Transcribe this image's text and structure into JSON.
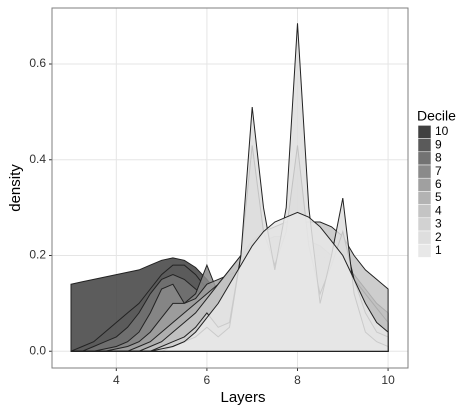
{
  "chart_data": {
    "type": "density",
    "x_label": "Layers",
    "y_label": "density",
    "legend_title": "Decile",
    "x": [
      3,
      3.25,
      3.5,
      3.75,
      4,
      4.25,
      4.5,
      4.75,
      5,
      5.25,
      5.5,
      5.75,
      6,
      6.25,
      6.5,
      6.75,
      7,
      7.25,
      7.5,
      7.75,
      8,
      8.25,
      8.5,
      8.75,
      9,
      9.25,
      9.5,
      9.75,
      10
    ],
    "xlim": [
      2.58,
      10.44
    ],
    "xticks": [
      4,
      6,
      8,
      10
    ],
    "ylim": [
      -0.035,
      0.717
    ],
    "yticks": [
      {
        "value": 0,
        "label": "0.0"
      },
      0.2,
      0.4,
      0.6
    ],
    "grid": true,
    "series": [
      {
        "name": "10",
        "color": "#404040",
        "values": [
          0.14,
          0.145,
          0.15,
          0.155,
          0.16,
          0.165,
          0.17,
          0.18,
          0.19,
          0.195,
          0.19,
          0.175,
          0.15,
          0.12,
          0.09,
          0.06,
          0.04,
          0.025,
          0.015,
          0.01,
          0.005,
          0.005,
          0,
          0,
          0,
          0,
          0,
          0,
          0
        ]
      },
      {
        "name": "9",
        "color": "#5a5a5a",
        "values": [
          0,
          0.01,
          0.02,
          0.04,
          0.06,
          0.08,
          0.1,
          0.13,
          0.16,
          0.18,
          0.18,
          0.16,
          0.13,
          0.1,
          0.08,
          0.06,
          0.05,
          0.04,
          0.03,
          0.02,
          0.015,
          0.01,
          0.01,
          0.005,
          0,
          0,
          0,
          0,
          0
        ]
      },
      {
        "name": "8",
        "color": "#737373",
        "values": [
          0,
          0,
          0.01,
          0.02,
          0.03,
          0.05,
          0.08,
          0.12,
          0.15,
          0.16,
          0.15,
          0.13,
          0.11,
          0.1,
          0.09,
          0.08,
          0.07,
          0.06,
          0.05,
          0.04,
          0.03,
          0.02,
          0.015,
          0.01,
          0.01,
          0.005,
          0,
          0,
          0
        ]
      },
      {
        "name": "7",
        "color": "#8a8a8a",
        "values": [
          0,
          0,
          0,
          0.005,
          0.01,
          0.02,
          0.04,
          0.08,
          0.13,
          0.14,
          0.1,
          0.12,
          0.18,
          0.12,
          0.08,
          0.1,
          0.14,
          0.1,
          0.08,
          0.07,
          0.06,
          0.05,
          0.04,
          0.03,
          0.03,
          0.02,
          0.01,
          0.005,
          0
        ]
      },
      {
        "name": "6",
        "color": "#a0a0a0",
        "values": [
          0,
          0,
          0,
          0,
          0.005,
          0.01,
          0.02,
          0.04,
          0.07,
          0.1,
          0.1,
          0.11,
          0.14,
          0.15,
          0.16,
          0.17,
          0.18,
          0.19,
          0.2,
          0.2,
          0.2,
          0.2,
          0.2,
          0.19,
          0.18,
          0.16,
          0.13,
          0.1,
          0.08
        ]
      },
      {
        "name": "5",
        "color": "#b3b3b3",
        "values": [
          0,
          0,
          0,
          0,
          0,
          0,
          0.01,
          0.02,
          0.04,
          0.06,
          0.08,
          0.1,
          0.12,
          0.14,
          0.17,
          0.2,
          0.22,
          0.23,
          0.24,
          0.24,
          0.24,
          0.23,
          0.22,
          0.2,
          0.18,
          0.15,
          0.12,
          0.09,
          0.06
        ]
      },
      {
        "name": "4",
        "color": "#c4c4c4",
        "values": [
          0,
          0,
          0,
          0,
          0,
          0,
          0,
          0.01,
          0.02,
          0.04,
          0.06,
          0.08,
          0.11,
          0.14,
          0.17,
          0.2,
          0.23,
          0.25,
          0.26,
          0.27,
          0.27,
          0.27,
          0.27,
          0.26,
          0.24,
          0.2,
          0.17,
          0.15,
          0.13
        ]
      },
      {
        "name": "3",
        "color": "#d2d2d2",
        "values": [
          0,
          0,
          0,
          0,
          0,
          0,
          0,
          0,
          0.01,
          0.02,
          0.03,
          0.05,
          0.08,
          0.05,
          0.06,
          0.2,
          0.43,
          0.25,
          0.18,
          0.25,
          0.43,
          0.22,
          0.12,
          0.18,
          0.25,
          0.15,
          0.08,
          0.04,
          0.03
        ]
      },
      {
        "name": "2",
        "color": "#dedede",
        "values": [
          0,
          0,
          0,
          0,
          0,
          0,
          0,
          0,
          0,
          0.01,
          0.02,
          0.03,
          0.05,
          0.03,
          0.05,
          0.2,
          0.51,
          0.3,
          0.17,
          0.3,
          0.685,
          0.3,
          0.1,
          0.2,
          0.32,
          0.12,
          0.04,
          0.02,
          0.01
        ]
      },
      {
        "name": "1",
        "color": "#e8e8e8",
        "values": [
          0,
          0,
          0,
          0,
          0,
          0,
          0,
          0,
          0.005,
          0.01,
          0.02,
          0.04,
          0.07,
          0.1,
          0.14,
          0.18,
          0.22,
          0.25,
          0.27,
          0.28,
          0.29,
          0.28,
          0.26,
          0.23,
          0.2,
          0.15,
          0.1,
          0.06,
          0.04
        ]
      }
    ]
  }
}
